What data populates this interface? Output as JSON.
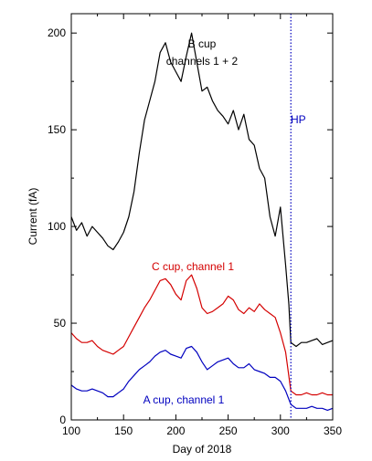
{
  "chart_data": {
    "type": "line",
    "xlabel": "Day of 2018",
    "ylabel": "Current (fA)",
    "xlim": [
      100,
      350
    ],
    "ylim": [
      0,
      210
    ],
    "xticks": [
      100,
      150,
      200,
      250,
      300,
      350
    ],
    "yticks": [
      0,
      50,
      100,
      150,
      200
    ],
    "grid": false,
    "series": [
      {
        "name": "B cup channels 1 + 2",
        "color": "#000000",
        "x": [
          100,
          105,
          110,
          115,
          120,
          125,
          130,
          135,
          140,
          145,
          150,
          155,
          160,
          165,
          170,
          175,
          180,
          185,
          190,
          195,
          200,
          205,
          210,
          215,
          220,
          225,
          230,
          235,
          240,
          245,
          250,
          255,
          260,
          265,
          270,
          275,
          280,
          285,
          290,
          295,
          300,
          305,
          308,
          310,
          315,
          320,
          325,
          330,
          335,
          340,
          345,
          350
        ],
        "y": [
          105,
          98,
          102,
          95,
          100,
          97,
          94,
          90,
          88,
          92,
          97,
          105,
          118,
          138,
          155,
          165,
          175,
          190,
          195,
          185,
          180,
          175,
          188,
          200,
          185,
          170,
          172,
          165,
          160,
          157,
          153,
          160,
          150,
          158,
          145,
          142,
          130,
          125,
          105,
          95,
          110,
          80,
          60,
          40,
          38,
          40,
          40,
          41,
          42,
          39,
          40,
          41
        ]
      },
      {
        "name": "C cup, channel 1",
        "color": "#d40000",
        "x": [
          100,
          105,
          110,
          115,
          120,
          125,
          130,
          135,
          140,
          145,
          150,
          155,
          160,
          165,
          170,
          175,
          180,
          185,
          190,
          195,
          200,
          205,
          210,
          215,
          220,
          225,
          230,
          235,
          240,
          245,
          250,
          255,
          260,
          265,
          270,
          275,
          280,
          285,
          290,
          295,
          300,
          305,
          310,
          315,
          320,
          325,
          330,
          335,
          340,
          345,
          350
        ],
        "y": [
          45,
          42,
          40,
          40,
          41,
          38,
          36,
          35,
          34,
          36,
          38,
          43,
          48,
          53,
          58,
          62,
          67,
          72,
          73,
          70,
          65,
          62,
          72,
          75,
          68,
          58,
          55,
          56,
          58,
          60,
          64,
          62,
          57,
          55,
          58,
          56,
          60,
          57,
          55,
          53,
          45,
          35,
          15,
          13,
          13,
          14,
          13,
          13,
          14,
          13,
          13
        ]
      },
      {
        "name": "A cup, channel 1",
        "color": "#0000bf",
        "x": [
          100,
          105,
          110,
          115,
          120,
          125,
          130,
          135,
          140,
          145,
          150,
          155,
          160,
          165,
          170,
          175,
          180,
          185,
          190,
          195,
          200,
          205,
          210,
          215,
          220,
          225,
          230,
          235,
          240,
          245,
          250,
          255,
          260,
          265,
          270,
          275,
          280,
          285,
          290,
          295,
          300,
          305,
          310,
          315,
          320,
          325,
          330,
          335,
          340,
          345,
          350
        ],
        "y": [
          18,
          16,
          15,
          15,
          16,
          15,
          14,
          12,
          12,
          14,
          16,
          20,
          23,
          26,
          28,
          30,
          33,
          35,
          36,
          34,
          33,
          32,
          37,
          38,
          35,
          30,
          26,
          28,
          30,
          31,
          32,
          29,
          27,
          27,
          29,
          26,
          25,
          24,
          22,
          22,
          20,
          15,
          8,
          6,
          6,
          6,
          7,
          6,
          6,
          5,
          6
        ]
      }
    ],
    "annotations": [
      {
        "text": "B cup",
        "color": "#000000"
      },
      {
        "text": "channels 1 + 2",
        "color": "#000000"
      },
      {
        "text": "C cup, channel 1",
        "color": "#d40000"
      },
      {
        "text": "A cup, channel 1",
        "color": "#0000bf"
      },
      {
        "text": "HP",
        "color": "#0000bf"
      }
    ],
    "vline": {
      "x": 310,
      "color": "#0000bf",
      "style": "dotted"
    }
  }
}
